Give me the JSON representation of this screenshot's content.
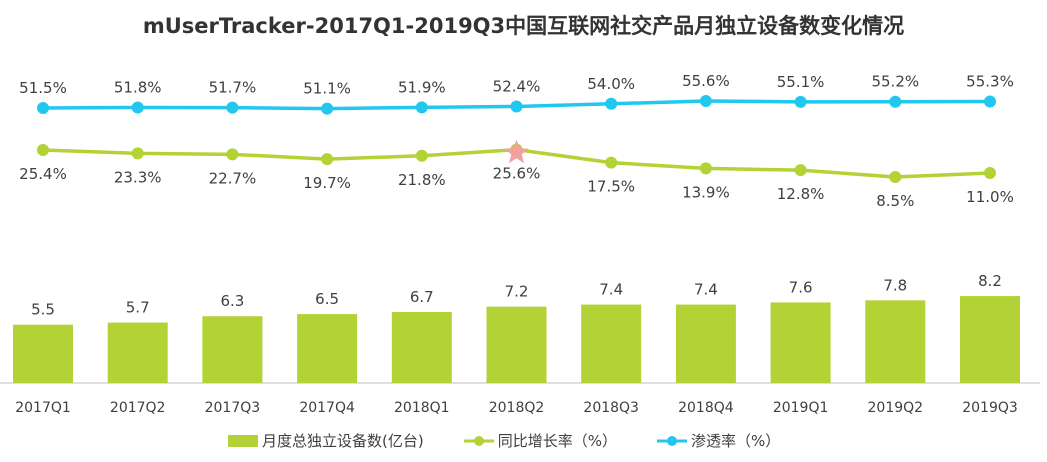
{
  "chart_data": {
    "type": "bar+line",
    "title": "mUserTracker-2017Q1-2019Q3中国互联网社交产品月独立设备数变化情况",
    "categories": [
      "2017Q1",
      "2017Q2",
      "2017Q3",
      "2017Q4",
      "2018Q1",
      "2018Q2",
      "2018Q3",
      "2018Q4",
      "2019Q1",
      "2019Q2",
      "2019Q3"
    ],
    "series": [
      {
        "name": "月度总独立设备数(亿台)",
        "type": "bar",
        "color": "#b2d235",
        "values": [
          5.5,
          5.7,
          6.3,
          6.5,
          6.7,
          7.2,
          7.4,
          7.4,
          7.6,
          7.8,
          8.2
        ],
        "labels": [
          "5.5",
          "5.7",
          "6.3",
          "6.5",
          "6.7",
          "7.2",
          "7.4",
          "7.4",
          "7.6",
          "7.8",
          "8.2"
        ]
      },
      {
        "name": "同比增长率（%）",
        "type": "line",
        "color": "#b2d235",
        "values": [
          25.4,
          23.3,
          22.7,
          19.7,
          21.8,
          25.6,
          17.5,
          13.9,
          12.8,
          8.5,
          11.0
        ],
        "labels": [
          "25.4%",
          "23.3%",
          "22.7%",
          "19.7%",
          "21.8%",
          "25.6%",
          "17.5%",
          "13.9%",
          "12.8%",
          "8.5%",
          "11.0%"
        ]
      },
      {
        "name": "渗透率（%）",
        "type": "line",
        "color": "#22c7f0",
        "values": [
          51.5,
          51.8,
          51.7,
          51.1,
          51.9,
          52.4,
          54.0,
          55.6,
          55.1,
          55.2,
          55.3
        ],
        "labels": [
          "51.5%",
          "51.8%",
          "51.7%",
          "51.1%",
          "51.9%",
          "52.4%",
          "54.0%",
          "55.6%",
          "55.1%",
          "55.2%",
          "55.3%"
        ]
      }
    ],
    "highlight": {
      "series": "同比增长率（%）",
      "category": "2018Q2",
      "marker": "star",
      "color": "#f4a0a0"
    },
    "legend": "bottom",
    "grid": false
  }
}
